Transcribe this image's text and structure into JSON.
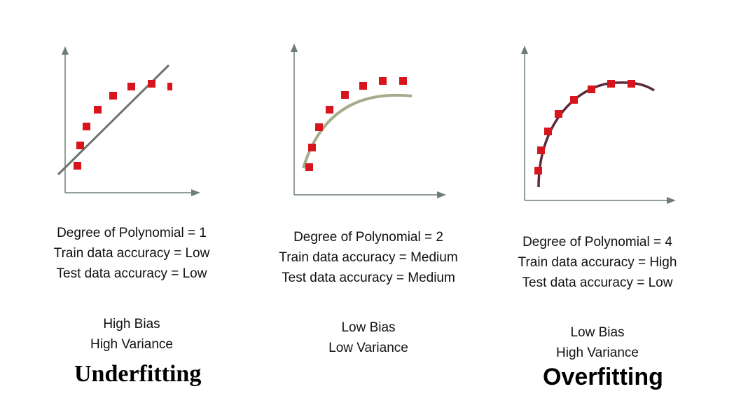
{
  "colors": {
    "axis": "#6e7e76",
    "point": "#d8141c",
    "fit_linear": "#6a746d",
    "fit_medium": "#a3ad8c",
    "fit_high": "#5a2b3c"
  },
  "panels": [
    {
      "stats": [
        "Degree of Polynomial = 1",
        "Train data accuracy = Low",
        "Test data accuracy = Low"
      ],
      "bias": "High Bias",
      "variance": "High Variance",
      "verdict": "Underfitting"
    },
    {
      "stats": [
        "Degree of Polynomial = 2",
        "Train data accuracy = Medium",
        "Test data accuracy = Medium"
      ],
      "bias": "Low Bias",
      "variance": "Low Variance",
      "verdict": ""
    },
    {
      "stats": [
        "Degree of Polynomial = 4",
        "Train data accuracy = High",
        "Test data accuracy = Low"
      ],
      "bias": "Low Bias",
      "variance": "High Variance",
      "verdict": "Overfitting"
    }
  ]
}
